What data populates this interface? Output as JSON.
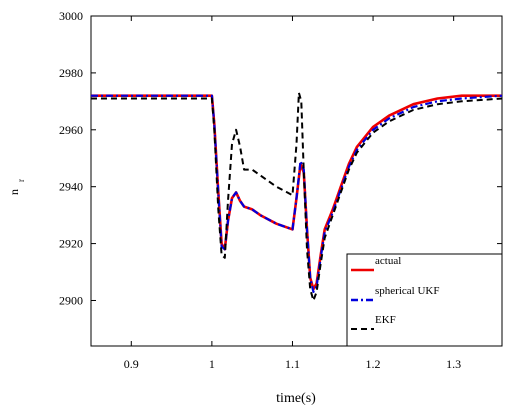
{
  "chart_data": {
    "type": "line",
    "title": "",
    "xlabel": "time(s)",
    "ylabel_main": "n",
    "ylabel_sub": "r",
    "xlim": [
      0.85,
      1.36
    ],
    "ylim": [
      2884,
      3000
    ],
    "xticks": [
      0.9,
      1.0,
      1.1,
      1.2,
      1.3
    ],
    "xtick_labels": [
      "0.9",
      "1",
      "1.1",
      "1.2",
      "1.3"
    ],
    "yticks": [
      2900,
      2920,
      2940,
      2960,
      2980,
      3000
    ],
    "ytick_labels": [
      "2900",
      "2920",
      "2940",
      "2960",
      "2980",
      "3000"
    ],
    "grid": false,
    "legend_position": "bottom-right",
    "series": [
      {
        "name": "actual",
        "color": "#ee0000",
        "dash": "solid",
        "x": [
          0.85,
          1.0,
          1.003,
          1.008,
          1.012,
          1.016,
          1.02,
          1.025,
          1.03,
          1.035,
          1.04,
          1.05,
          1.06,
          1.08,
          1.1,
          1.105,
          1.11,
          1.114,
          1.118,
          1.122,
          1.126,
          1.13,
          1.135,
          1.14,
          1.15,
          1.16,
          1.17,
          1.18,
          1.2,
          1.22,
          1.25,
          1.28,
          1.31,
          1.36
        ],
        "y": [
          2972,
          2972,
          2962,
          2938,
          2920,
          2918,
          2928,
          2936,
          2938,
          2935,
          2933,
          2932,
          2930,
          2927,
          2925,
          2936,
          2948,
          2945,
          2925,
          2908,
          2904,
          2906,
          2916,
          2925,
          2932,
          2940,
          2948,
          2954,
          2961,
          2965,
          2969,
          2971,
          2972,
          2972
        ]
      },
      {
        "name": "spherical UKF",
        "color": "#0000dd",
        "dash": "dashdot",
        "x": [
          0.85,
          1.0,
          1.003,
          1.008,
          1.012,
          1.016,
          1.02,
          1.025,
          1.03,
          1.035,
          1.04,
          1.05,
          1.06,
          1.08,
          1.1,
          1.105,
          1.11,
          1.114,
          1.118,
          1.122,
          1.126,
          1.13,
          1.135,
          1.14,
          1.15,
          1.16,
          1.17,
          1.18,
          1.2,
          1.22,
          1.25,
          1.28,
          1.31,
          1.36
        ],
        "y": [
          2972,
          2972,
          2962,
          2938,
          2919,
          2918,
          2928,
          2936,
          2938,
          2935,
          2933,
          2932,
          2930,
          2927,
          2925,
          2936,
          2949,
          2946,
          2925,
          2908,
          2903,
          2905,
          2915,
          2924,
          2931,
          2939,
          2947,
          2953,
          2960,
          2964,
          2968,
          2970,
          2971,
          2972
        ]
      },
      {
        "name": "EKF",
        "color": "#000000",
        "dash": "dashed",
        "x": [
          0.85,
          1.0,
          1.003,
          1.008,
          1.012,
          1.016,
          1.02,
          1.025,
          1.03,
          1.035,
          1.04,
          1.05,
          1.06,
          1.08,
          1.1,
          1.105,
          1.108,
          1.111,
          1.114,
          1.118,
          1.122,
          1.126,
          1.13,
          1.135,
          1.14,
          1.15,
          1.16,
          1.17,
          1.18,
          1.2,
          1.22,
          1.25,
          1.28,
          1.31,
          1.36
        ],
        "y": [
          2971,
          2971,
          2960,
          2932,
          2916,
          2915,
          2935,
          2955,
          2960,
          2954,
          2946,
          2946,
          2944,
          2940,
          2937,
          2955,
          2973,
          2970,
          2945,
          2918,
          2904,
          2900,
          2903,
          2913,
          2922,
          2930,
          2938,
          2946,
          2952,
          2959,
          2963,
          2967,
          2969,
          2970,
          2971
        ]
      }
    ]
  }
}
